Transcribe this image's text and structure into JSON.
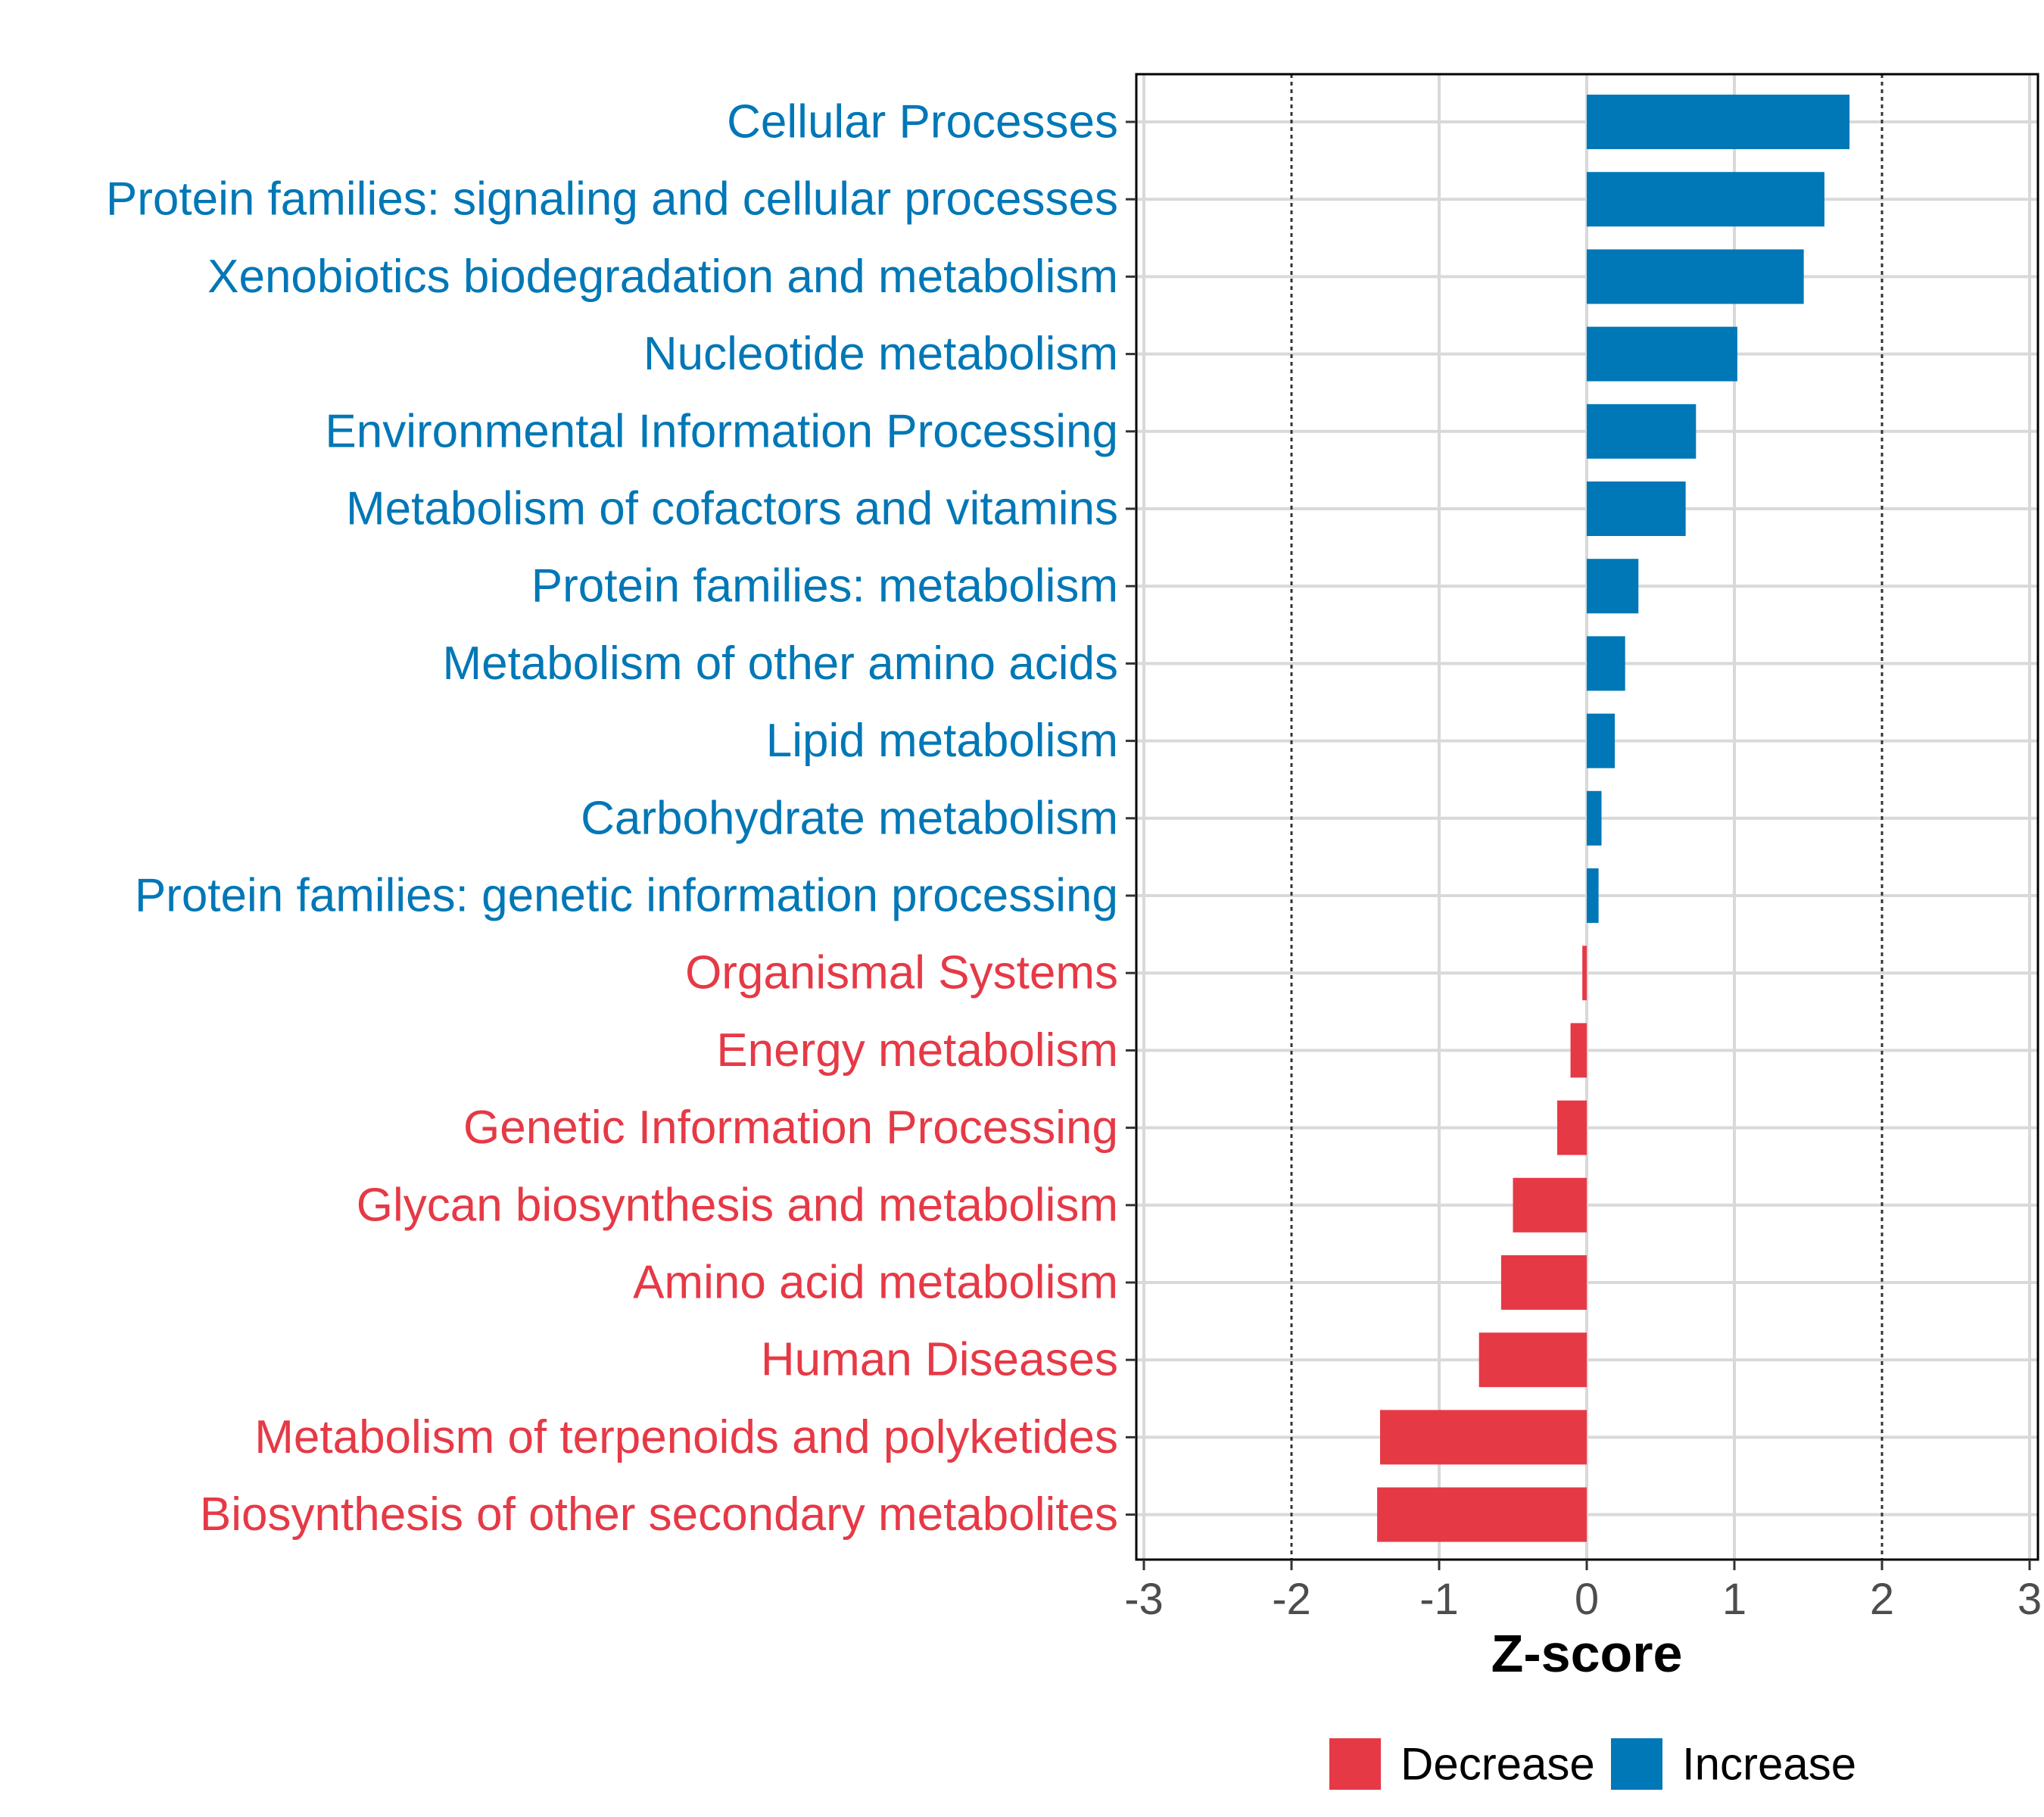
{
  "chart_data": {
    "type": "bar",
    "orientation": "horizontal",
    "xlabel": "Z-score",
    "xlim": [
      -3,
      3
    ],
    "xticks": [
      -3,
      -2,
      -1,
      0,
      1,
      2,
      3
    ],
    "xtick_labels": [
      "-3",
      "-2",
      "-1",
      "0",
      "1",
      "2",
      "3"
    ],
    "reference_lines": [
      -2,
      2
    ],
    "grid": true,
    "legend_position": "bottom",
    "colors": {
      "Decrease": "#e63946",
      "Increase": "#0077b6"
    },
    "legend": [
      {
        "label": "Decrease",
        "color": "#e63946"
      },
      {
        "label": "Increase",
        "color": "#0077b6"
      }
    ],
    "categories": [
      "Cellular Processes",
      "Protein families: signaling and cellular processes",
      "Xenobiotics biodegradation and metabolism",
      "Nucleotide metabolism",
      "Environmental Information Processing",
      "Metabolism of cofactors and vitamins",
      "Protein families: metabolism",
      "Metabolism of other amino acids",
      "Lipid metabolism",
      "Carbohydrate metabolism",
      "Protein families: genetic information processing",
      "Organismal Systems",
      "Energy metabolism",
      "Genetic Information Processing",
      "Glycan biosynthesis and metabolism",
      "Amino acid metabolism",
      "Human Diseases",
      "Metabolism of terpenoids and polyketides",
      "Biosynthesis of other secondary metabolites"
    ],
    "values": [
      1.78,
      1.61,
      1.47,
      1.02,
      0.74,
      0.67,
      0.35,
      0.26,
      0.19,
      0.1,
      0.08,
      -0.03,
      -0.11,
      -0.2,
      -0.5,
      -0.58,
      -0.73,
      -1.4,
      -1.42
    ],
    "groups": [
      "Increase",
      "Increase",
      "Increase",
      "Increase",
      "Increase",
      "Increase",
      "Increase",
      "Increase",
      "Increase",
      "Increase",
      "Increase",
      "Decrease",
      "Decrease",
      "Decrease",
      "Decrease",
      "Decrease",
      "Decrease",
      "Decrease",
      "Decrease"
    ]
  }
}
